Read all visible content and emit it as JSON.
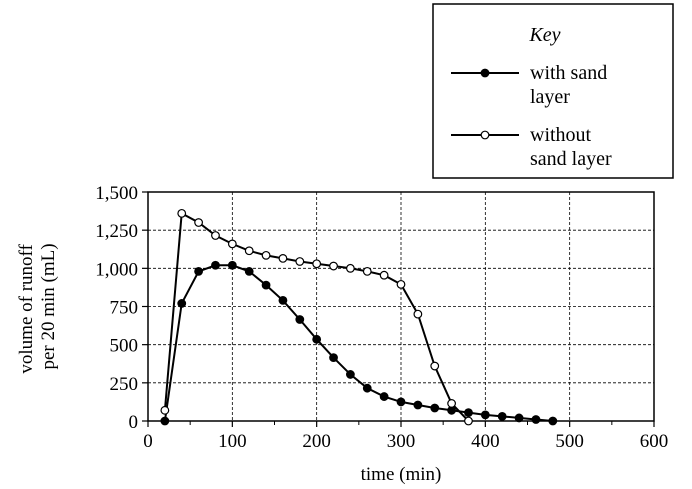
{
  "chart_data": {
    "type": "line",
    "title": "",
    "xlabel": "time (min)",
    "ylabel_lines": [
      "volume of runoff",
      "per 20 min (mL)"
    ],
    "xlim": [
      0,
      600
    ],
    "ylim": [
      0,
      1500
    ],
    "x_ticks": [
      0,
      100,
      200,
      300,
      400,
      500,
      600
    ],
    "y_ticks": [
      0,
      250,
      500,
      750,
      1000,
      1250,
      1500
    ],
    "x_tick_labels": [
      "0",
      "100",
      "200",
      "300",
      "400",
      "500",
      "600"
    ],
    "y_tick_labels": [
      "0",
      "250",
      "500",
      "750",
      "1,000",
      "1,250",
      "1,500"
    ],
    "grid": true,
    "legend": {
      "title": "Key",
      "placement": "top-right",
      "entries": [
        {
          "series": 0,
          "lines": [
            "with sand",
            "layer"
          ]
        },
        {
          "series": 1,
          "lines": [
            "without",
            "sand layer"
          ]
        }
      ]
    },
    "series": [
      {
        "name": "with sand layer",
        "marker": "filled",
        "x": [
          20,
          40,
          60,
          80,
          100,
          120,
          140,
          160,
          180,
          200,
          220,
          240,
          260,
          280,
          300,
          320,
          340,
          360,
          380,
          400,
          420,
          440,
          460,
          480
        ],
        "y": [
          0,
          770,
          980,
          1020,
          1020,
          980,
          890,
          790,
          665,
          535,
          415,
          305,
          215,
          160,
          125,
          105,
          85,
          70,
          55,
          40,
          30,
          20,
          10,
          0
        ]
      },
      {
        "name": "without sand layer",
        "marker": "open",
        "x": [
          20,
          40,
          60,
          80,
          100,
          120,
          140,
          160,
          180,
          200,
          220,
          240,
          260,
          280,
          300,
          320,
          340,
          360,
          380
        ],
        "y": [
          70,
          1360,
          1300,
          1215,
          1160,
          1115,
          1085,
          1065,
          1045,
          1030,
          1015,
          1000,
          980,
          955,
          895,
          700,
          360,
          115,
          0
        ]
      }
    ]
  }
}
